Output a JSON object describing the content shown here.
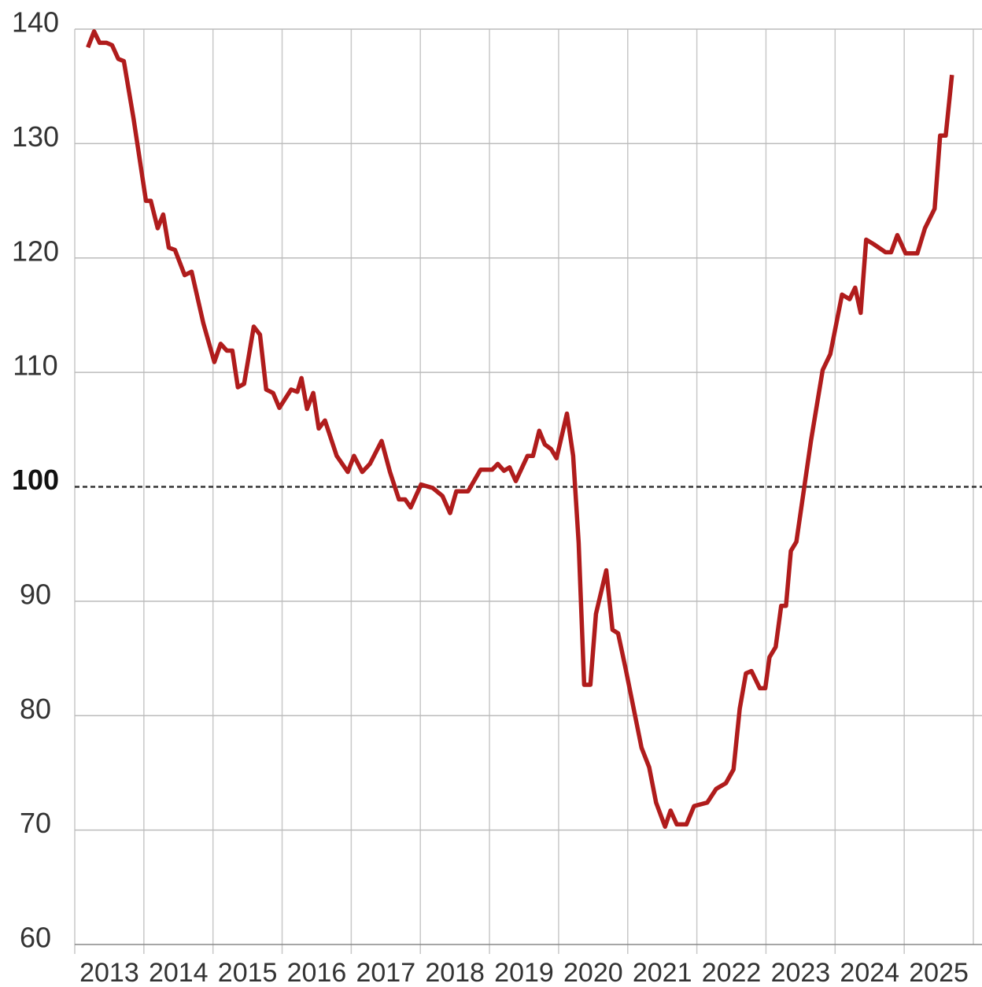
{
  "chart_data": {
    "type": "line",
    "xlim": [
      2013,
      2026
    ],
    "xticks": [
      2013,
      2014,
      2015,
      2016,
      2017,
      2018,
      2019,
      2020,
      2021,
      2022,
      2023,
      2024,
      2025
    ],
    "ylim": [
      60,
      140
    ],
    "yticks": [
      60,
      70,
      80,
      90,
      100,
      110,
      120,
      130,
      140
    ],
    "reference_line": 100,
    "grid": true,
    "series": [
      {
        "color": "#b01c1c",
        "x": [
          2013.19,
          2013.28,
          2013.36,
          2013.46,
          2013.54,
          2013.63,
          2013.71,
          2013.85,
          2014.03,
          2014.1,
          2014.2,
          2014.28,
          2014.36,
          2014.45,
          2014.59,
          2014.69,
          2014.86,
          2015.02,
          2015.11,
          2015.2,
          2015.28,
          2015.36,
          2015.45,
          2015.59,
          2015.68,
          2015.77,
          2015.87,
          2015.96,
          2016.13,
          2016.22,
          2016.28,
          2016.36,
          2016.45,
          2016.53,
          2016.62,
          2016.79,
          2016.95,
          2017.04,
          2017.16,
          2017.27,
          2017.44,
          2017.56,
          2017.69,
          2017.78,
          2017.86,
          2018.01,
          2018.18,
          2018.32,
          2018.43,
          2018.52,
          2018.69,
          2018.87,
          2019.04,
          2019.12,
          2019.21,
          2019.29,
          2019.38,
          2019.55,
          2019.63,
          2019.72,
          2019.8,
          2019.89,
          2019.97,
          2020.12,
          2020.21,
          2020.29,
          2020.37,
          2020.46,
          2020.54,
          2020.69,
          2020.78,
          2020.86,
          2020.97,
          2021.2,
          2021.31,
          2021.41,
          2021.54,
          2021.62,
          2021.71,
          2021.85,
          2021.96,
          2022.15,
          2022.28,
          2022.42,
          2022.53,
          2022.62,
          2022.71,
          2022.79,
          2022.91,
          2022.99,
          2023.05,
          2023.14,
          2023.22,
          2023.29,
          2023.36,
          2023.44,
          2023.65,
          2023.82,
          2023.93,
          2024.1,
          2024.21,
          2024.29,
          2024.37,
          2024.45,
          2024.56,
          2024.73,
          2024.81,
          2024.9,
          2025.02,
          2025.19,
          2025.3,
          2025.44,
          2025.52,
          2025.6,
          2025.69
        ],
        "values": [
          138.4,
          139.8,
          138.8,
          138.8,
          138.6,
          137.4,
          137.2,
          132.2,
          125.0,
          125.0,
          122.6,
          123.8,
          120.9,
          120.7,
          118.5,
          118.8,
          114.3,
          110.9,
          112.5,
          111.9,
          111.9,
          108.7,
          109.0,
          114.0,
          113.3,
          108.5,
          108.2,
          106.9,
          108.5,
          108.3,
          109.5,
          106.8,
          108.2,
          105.1,
          105.8,
          102.7,
          101.3,
          102.7,
          101.3,
          102.0,
          104.0,
          101.3,
          98.9,
          98.9,
          98.2,
          100.2,
          99.9,
          99.2,
          97.7,
          99.6,
          99.6,
          101.5,
          101.5,
          102.0,
          101.4,
          101.7,
          100.5,
          102.7,
          102.7,
          104.9,
          103.7,
          103.3,
          102.5,
          106.4,
          102.7,
          95.1,
          82.7,
          82.7,
          88.9,
          92.7,
          87.5,
          87.2,
          84.1,
          77.2,
          75.5,
          72.4,
          70.3,
          71.7,
          70.5,
          70.5,
          72.1,
          72.4,
          73.6,
          74.1,
          75.3,
          80.6,
          83.7,
          83.9,
          82.4,
          82.4,
          85.1,
          86.0,
          89.6,
          89.6,
          94.4,
          95.2,
          104.0,
          110.2,
          111.6,
          116.8,
          116.4,
          117.4,
          115.2,
          121.6,
          121.2,
          120.5,
          120.5,
          122.0,
          120.4,
          120.4,
          122.6,
          124.3,
          130.7,
          130.7,
          136.0
        ]
      }
    ]
  }
}
